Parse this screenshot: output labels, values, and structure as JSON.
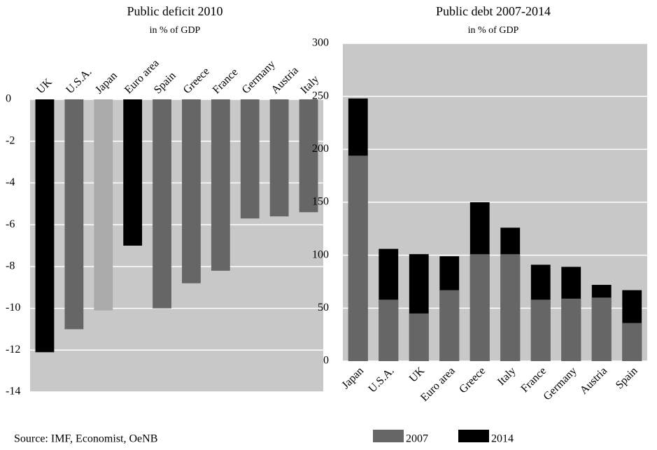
{
  "chart_data": [
    {
      "type": "bar",
      "title": "Public deficit 2010",
      "subtitle": "in % of GDP",
      "categories": [
        "UK",
        "U.S.A.",
        "Japan",
        "Euro area",
        "Spain",
        "Greece",
        "France",
        "Germany",
        "Austria",
        "Italy"
      ],
      "values": [
        -12.1,
        -11,
        -10.1,
        -7,
        -10,
        -8.8,
        -8.2,
        -5.7,
        -5.6,
        -5.4
      ],
      "colors": [
        "#000000",
        "#666666",
        "#aaaaaa",
        "#000000",
        "#666666",
        "#666666",
        "#666666",
        "#666666",
        "#666666",
        "#666666"
      ],
      "ylim": [
        -14,
        0
      ],
      "yticks": [
        0,
        -2,
        -4,
        -6,
        -8,
        -10,
        -12,
        -14
      ],
      "grid": true
    },
    {
      "type": "overlap-bar",
      "title": "Public debt 2007-2014",
      "subtitle": "in % of GDP",
      "categories": [
        "Japan",
        "U.S.A.",
        "UK",
        "Euro area",
        "Greece",
        "Italy",
        "France",
        "Germany",
        "Austria",
        "Spain"
      ],
      "series": [
        {
          "name": "2007",
          "color": "#666666",
          "values": [
            194,
            58,
            45,
            67,
            101,
            101,
            58,
            59,
            60,
            36
          ]
        },
        {
          "name": "2014",
          "color": "#000000",
          "values": [
            248,
            106,
            101,
            99,
            150,
            126,
            91,
            89,
            72,
            67
          ]
        }
      ],
      "ylim": [
        0,
        300
      ],
      "yticks": [
        0,
        50,
        100,
        150,
        200,
        250,
        300
      ],
      "grid": true
    }
  ],
  "source": "Source: IMF, Economist, OeNB"
}
